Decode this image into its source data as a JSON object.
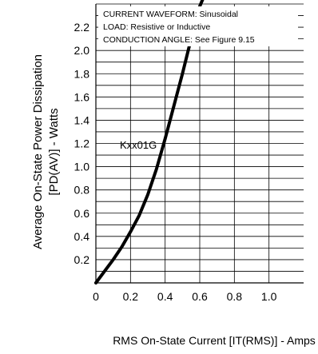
{
  "chart_data": {
    "type": "line",
    "title": "",
    "xlabel": "RMS On-State Current [IT(RMS)] - Amps",
    "ylabel": {
      "line1": "Average On-State Power Dissipation",
      "line2": "[PD(AV)] - Watts"
    },
    "xlim": [
      0,
      1.2
    ],
    "ylim": [
      0,
      2.4
    ],
    "x_ticks": [
      "0",
      "0.2",
      "0.4",
      "0.6",
      "0.8",
      "1.0"
    ],
    "x_tick_values": [
      0,
      0.2,
      0.4,
      0.6,
      0.8,
      1.0
    ],
    "y_ticks": [
      "0.2",
      "0.4",
      "0.6",
      "0.8",
      "1.0",
      "1.2",
      "1.4",
      "1.6",
      "1.8",
      "2.0",
      "2.2"
    ],
    "y_tick_values": [
      0.2,
      0.4,
      0.6,
      0.8,
      1.0,
      1.2,
      1.4,
      1.6,
      1.8,
      2.0,
      2.2
    ],
    "grid": true,
    "legend": "none",
    "annotations": [
      "CURRENT WAVEFORM: Sinusoidal",
      "LOAD: Resistive or Inductive",
      "CONDUCTION ANGLE: See Figure 9.15"
    ],
    "series": [
      {
        "label": "Kxx01G",
        "color": "#000000",
        "x": [
          0,
          0.05,
          0.1,
          0.15,
          0.2,
          0.25,
          0.3,
          0.35,
          0.4,
          0.45,
          0.5,
          0.55,
          0.6,
          0.62
        ],
        "y": [
          0,
          0.1,
          0.2,
          0.31,
          0.44,
          0.58,
          0.76,
          0.98,
          1.24,
          1.52,
          1.8,
          2.1,
          2.38,
          2.45
        ]
      }
    ]
  }
}
